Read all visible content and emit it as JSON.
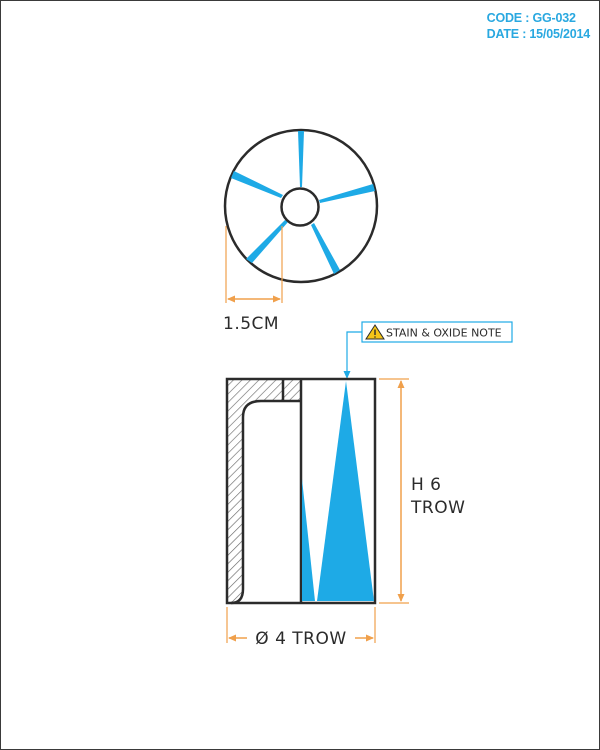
{
  "header": {
    "code": "CODE : GG-032",
    "date": "DATE : 15/05/2014"
  },
  "dimensions": {
    "hole_width": "1.5CM",
    "height_line1": "H 6",
    "height_line2": "TROW",
    "diameter": "Ø 4 TROW"
  },
  "note": {
    "label": "STAIN & OXIDE NOTE",
    "icon": "warning-triangle-icon"
  },
  "colors": {
    "accent_blue": "#1eaae6",
    "dimension_orange": "#f0a04b",
    "outline": "#2b2b2b",
    "header_blue": "#29a8e0"
  }
}
